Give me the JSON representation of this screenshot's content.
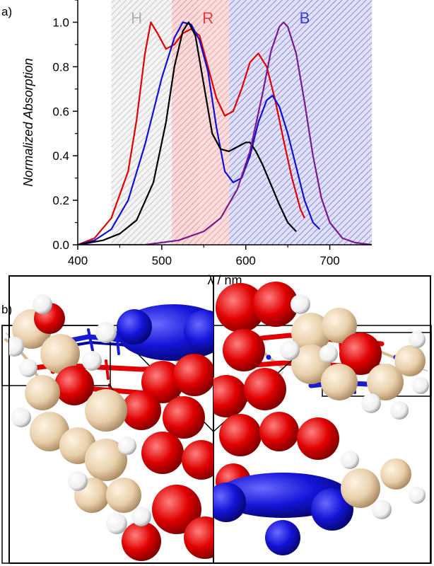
{
  "panel_a": {
    "label": "a)"
  },
  "panel_b": {
    "label": "b)"
  },
  "chart_data": {
    "type": "line",
    "xlabel": "λ / nm",
    "ylabel": "Normalized Absorption",
    "xlim": [
      400,
      750
    ],
    "ylim": [
      0,
      1.1
    ],
    "x_ticks": [
      400,
      500,
      600,
      700
    ],
    "y_ticks": [
      0.0,
      0.2,
      0.4,
      0.6,
      0.8,
      1.0
    ],
    "y_tick_labels": [
      "0.0",
      "0.2",
      "0.4",
      "0.6",
      "0.8",
      "1.0"
    ],
    "grid": false,
    "regions": [
      {
        "label": "H",
        "x_range": [
          440,
          545
        ],
        "color": "#b0b0b0"
      },
      {
        "label": "R",
        "x_range": [
          512,
          580
        ],
        "color": "#e8373b"
      },
      {
        "label": "B",
        "x_range": [
          580,
          750
        ],
        "color": "#3a3ad8"
      }
    ],
    "series": [
      {
        "color": "#e00000",
        "x": [
          400,
          420,
          440,
          460,
          470,
          480,
          487,
          495,
          505,
          515,
          525,
          535,
          545,
          555,
          565,
          575,
          585,
          595,
          605,
          615,
          625,
          635,
          645,
          655,
          665,
          670
        ],
        "y": [
          0.0,
          0.03,
          0.12,
          0.33,
          0.56,
          0.86,
          1.0,
          0.95,
          0.88,
          0.9,
          0.95,
          0.97,
          0.94,
          0.8,
          0.66,
          0.58,
          0.6,
          0.7,
          0.82,
          0.86,
          0.8,
          0.65,
          0.47,
          0.3,
          0.16,
          0.12
        ]
      },
      {
        "color": "#1010d0",
        "x": [
          400,
          420,
          440,
          460,
          480,
          500,
          515,
          525,
          535,
          545,
          555,
          565,
          575,
          585,
          595,
          605,
          615,
          625,
          632,
          640,
          650,
          660,
          670,
          680,
          688
        ],
        "y": [
          0.0,
          0.02,
          0.07,
          0.2,
          0.45,
          0.75,
          0.93,
          1.0,
          0.99,
          0.92,
          0.78,
          0.53,
          0.33,
          0.28,
          0.3,
          0.4,
          0.55,
          0.65,
          0.67,
          0.62,
          0.5,
          0.35,
          0.2,
          0.1,
          0.07
        ]
      },
      {
        "color": "#000000",
        "x": [
          400,
          430,
          450,
          470,
          490,
          505,
          515,
          525,
          532,
          540,
          550,
          560,
          570,
          580,
          590,
          600,
          605,
          612,
          620,
          630,
          640,
          650,
          660
        ],
        "y": [
          0.0,
          0.02,
          0.05,
          0.11,
          0.28,
          0.55,
          0.8,
          0.96,
          1.0,
          0.94,
          0.72,
          0.5,
          0.43,
          0.42,
          0.44,
          0.46,
          0.46,
          0.42,
          0.36,
          0.27,
          0.18,
          0.1,
          0.06
        ]
      },
      {
        "color": "#7a1a8a",
        "x": [
          400,
          480,
          520,
          550,
          570,
          590,
          605,
          620,
          630,
          640,
          645,
          650,
          660,
          670,
          680,
          690,
          700,
          715,
          730,
          750
        ],
        "y": [
          0.0,
          0.0,
          0.02,
          0.06,
          0.12,
          0.25,
          0.42,
          0.68,
          0.87,
          0.98,
          1.0,
          0.98,
          0.86,
          0.64,
          0.4,
          0.21,
          0.1,
          0.03,
          0.01,
          0.0
        ]
      }
    ]
  }
}
